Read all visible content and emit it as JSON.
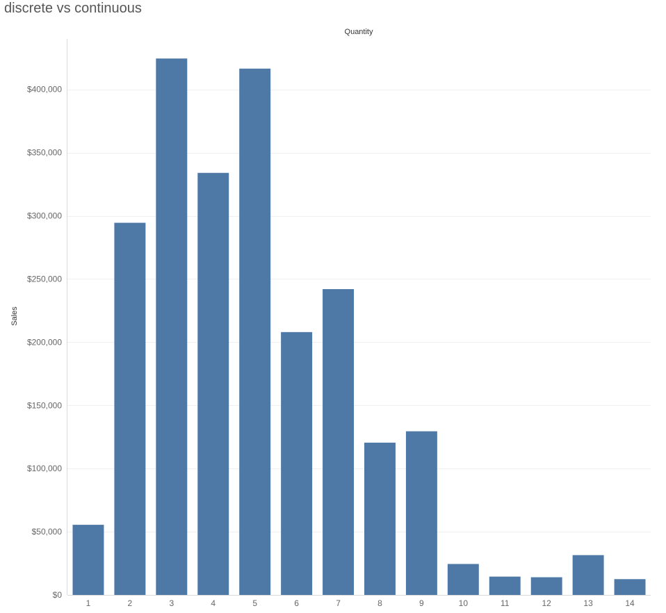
{
  "chart_data": {
    "type": "bar",
    "title": "discrete vs continuous",
    "xlabel": "Quantity",
    "ylabel": "Sales",
    "categories": [
      "1",
      "2",
      "3",
      "4",
      "5",
      "6",
      "7",
      "8",
      "9",
      "10",
      "11",
      "12",
      "13",
      "14"
    ],
    "values": [
      55500,
      294500,
      424500,
      334000,
      416500,
      208000,
      242000,
      120500,
      129500,
      24500,
      14500,
      14000,
      31500,
      12500
    ],
    "ylim": [
      0,
      440000
    ],
    "yticks": [
      0,
      50000,
      100000,
      150000,
      200000,
      250000,
      300000,
      350000,
      400000
    ],
    "ytick_labels": [
      "$0",
      "$50,000",
      "$100,000",
      "$150,000",
      "$200,000",
      "$250,000",
      "$300,000",
      "$350,000",
      "$400,000"
    ],
    "grid": true,
    "bar_color": "#4e79a7",
    "grid_color": "#efefef",
    "axis_color": "#d9d9d9"
  }
}
